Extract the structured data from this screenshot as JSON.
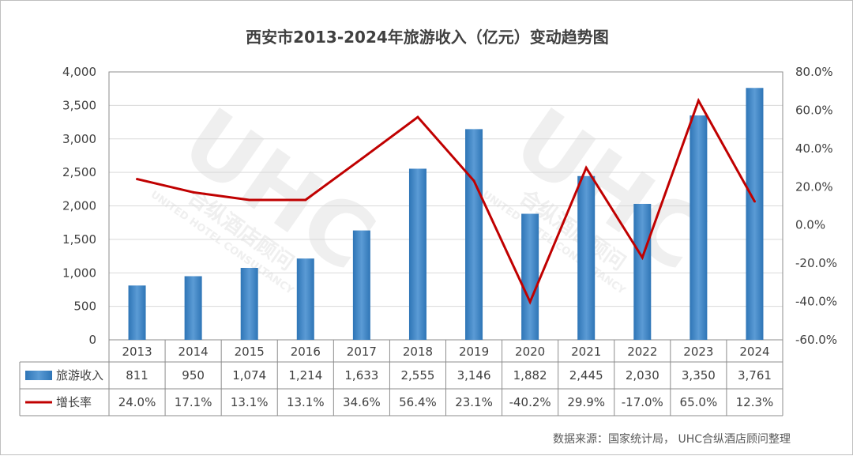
{
  "title": "西安市2013-2024年旅游收入（亿元）变动趋势图",
  "source_note": "数据来源：国家统计局， UHC合纵酒店顾问整理",
  "watermark": {
    "logo": "UHC",
    "cn": "合纵酒店顾问",
    "en": "UNITED HOTEL CONSULTANCY"
  },
  "colors": {
    "bar": "#2e75b6",
    "bar_light": "#5b9bd5",
    "line": "#c00000",
    "grid": "#d9d9d9",
    "border": "#8c8c8c"
  },
  "chart_data": {
    "type": "bar",
    "categories": [
      "2013",
      "2014",
      "2015",
      "2016",
      "2017",
      "2018",
      "2019",
      "2020",
      "2021",
      "2022",
      "2023",
      "2024"
    ],
    "series": [
      {
        "name": "旅游收入",
        "type": "bar",
        "axis": "left",
        "values": [
          811,
          950,
          1074,
          1214,
          1633,
          2555,
          3146,
          1882,
          2445,
          2030,
          3350,
          3761
        ],
        "labels": [
          "811",
          "950",
          "1,074",
          "1,214",
          "1,633",
          "2,555",
          "3,146",
          "1,882",
          "2,445",
          "2,030",
          "3,350",
          "3,761"
        ]
      },
      {
        "name": "增长率",
        "type": "line",
        "axis": "right",
        "values": [
          24.0,
          17.1,
          13.1,
          13.1,
          34.6,
          56.4,
          23.1,
          -40.2,
          29.9,
          -17.0,
          65.0,
          12.3
        ],
        "labels": [
          "24.0%",
          "17.1%",
          "13.1%",
          "13.1%",
          "34.6%",
          "56.4%",
          "23.1%",
          "-40.2%",
          "29.9%",
          "-17.0%",
          "65.0%",
          "12.3%"
        ]
      }
    ],
    "y_left": {
      "min": 0,
      "max": 4000,
      "step": 500,
      "ticks": [
        "0",
        "500",
        "1,000",
        "1,500",
        "2,000",
        "2,500",
        "3,000",
        "3,500",
        "4,000"
      ]
    },
    "y_right": {
      "min": -60,
      "max": 80,
      "step": 20,
      "ticks": [
        "-60.0%",
        "-40.0%",
        "-20.0%",
        "0.0%",
        "20.0%",
        "40.0%",
        "60.0%",
        "80.0%"
      ]
    },
    "grid": true,
    "legend": "data-table"
  }
}
